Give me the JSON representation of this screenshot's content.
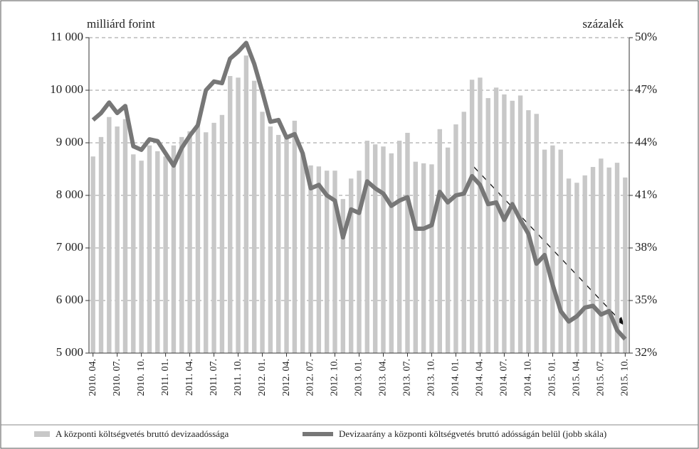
{
  "chart_data": {
    "type": "bar-line",
    "y_axis_label": "milliárd forint",
    "y2_axis_label": "százalék",
    "categories": [
      "2010. 04.",
      null,
      null,
      "2010. 07.",
      null,
      null,
      "2010. 10.",
      null,
      null,
      "2011. 01.",
      null,
      null,
      "2011. 04.",
      null,
      null,
      "2011. 07.",
      null,
      null,
      "2011. 10.",
      null,
      null,
      "2012. 01.",
      null,
      null,
      "2012. 04.",
      null,
      null,
      "2012. 07.",
      null,
      null,
      "2012. 10.",
      null,
      null,
      "2013. 01.",
      null,
      null,
      "2013. 04.",
      null,
      null,
      "2013. 07.",
      null,
      null,
      "2013. 10.",
      null,
      null,
      "2014. 01.",
      null,
      null,
      "2014. 04.",
      null,
      null,
      "2014. 07.",
      null,
      null,
      "2014. 10.",
      null,
      null,
      "2015. 01.",
      null,
      null,
      "2015. 04.",
      null,
      null,
      "2015. 07.",
      null,
      null,
      "2015. 10."
    ],
    "series": [
      {
        "name": "A központi költségvetés bruttó devizaadóssága",
        "type": "bar",
        "color": "#c8c8c8",
        "values": [
          8740,
          9110,
          9490,
          9310,
          9450,
          8780,
          8660,
          8950,
          8840,
          8740,
          8950,
          9110,
          9220,
          9310,
          9200,
          9380,
          9530,
          10270,
          10240,
          10660,
          10180,
          9590,
          9310,
          9150,
          9080,
          9420,
          8810,
          8570,
          8550,
          8470,
          8470,
          7930,
          8320,
          8470,
          9040,
          8970,
          8930,
          8800,
          9040,
          9190,
          8640,
          8610,
          8590,
          9260,
          8910,
          9350,
          9590,
          10200,
          10240,
          9850,
          10050,
          9920,
          9800,
          9900,
          9620,
          9550,
          8870,
          8950,
          8870,
          8320,
          8240,
          8380,
          8540,
          8700,
          8530,
          8620,
          8340
        ]
      },
      {
        "name": "Devizaarány a központi költségvetés bruttó adósságán belül (jobb skála)",
        "type": "line",
        "axis": "y2",
        "color": "#777777",
        "values": [
          45.3,
          45.7,
          46.3,
          45.7,
          46.1,
          43.8,
          43.6,
          44.2,
          44.1,
          43.4,
          42.7,
          43.7,
          44.4,
          45.0,
          47.0,
          47.5,
          47.4,
          48.8,
          49.2,
          49.7,
          48.5,
          46.9,
          45.2,
          45.3,
          44.3,
          44.5,
          43.4,
          41.4,
          41.6,
          41.0,
          40.7,
          38.6,
          40.2,
          40.0,
          41.8,
          41.4,
          41.1,
          40.4,
          40.7,
          40.9,
          39.1,
          39.1,
          39.3,
          41.2,
          40.6,
          41.0,
          41.1,
          42.1,
          41.6,
          40.5,
          40.6,
          39.6,
          40.5,
          39.6,
          38.8,
          37.1,
          37.6,
          35.9,
          34.4,
          33.8,
          34.1,
          34.6,
          34.7,
          34.2,
          34.4,
          33.3,
          32.8
        ]
      }
    ],
    "ylim": [
      5000,
      11000
    ],
    "yticks": [
      {
        "value": 5000,
        "label": "5 000"
      },
      {
        "value": 6000,
        "label": "6 000"
      },
      {
        "value": 7000,
        "label": "7 000"
      },
      {
        "value": 8000,
        "label": "8 000"
      },
      {
        "value": 9000,
        "label": "9 000"
      },
      {
        "value": 10000,
        "label": "10 000"
      },
      {
        "value": 11000,
        "label": "11 000"
      }
    ],
    "y2lim": [
      32,
      50
    ],
    "y2ticks": [
      {
        "value": 32,
        "label": "32%"
      },
      {
        "value": 35,
        "label": "35%"
      },
      {
        "value": 38,
        "label": "38%"
      },
      {
        "value": 41,
        "label": "41%"
      },
      {
        "value": 44,
        "label": "44%"
      },
      {
        "value": 47,
        "label": "47%"
      },
      {
        "value": 50,
        "label": "50%"
      }
    ],
    "grid": true
  }
}
